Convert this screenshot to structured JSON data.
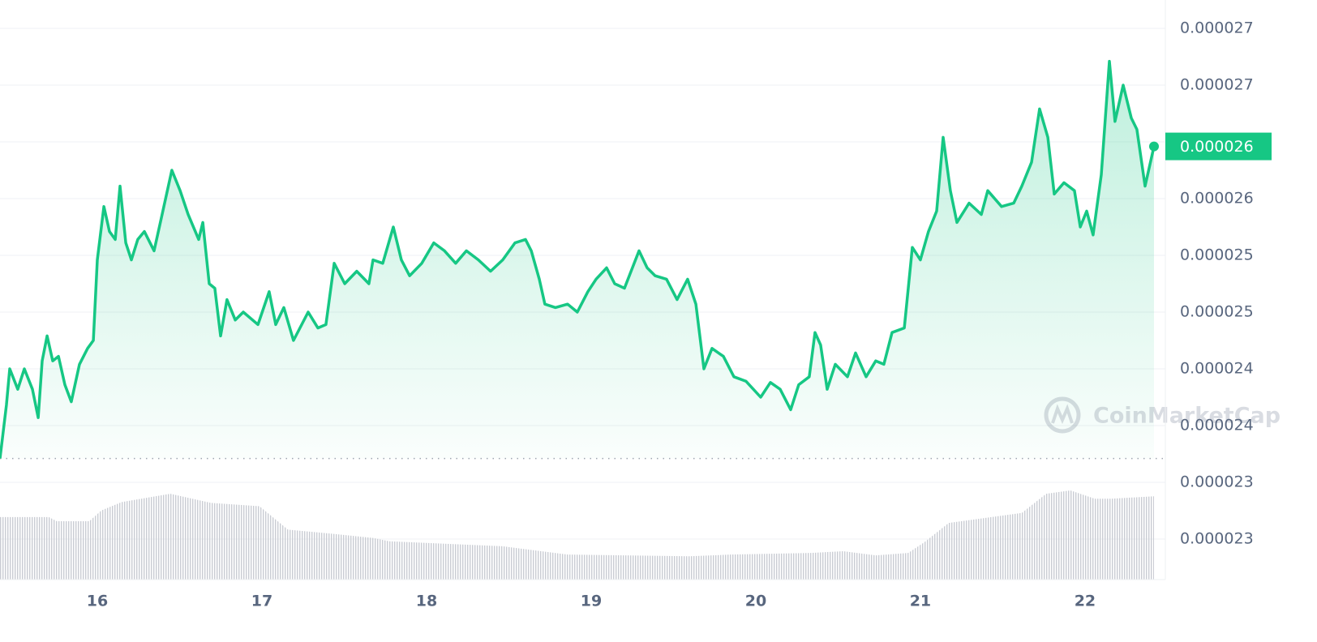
{
  "chart_data": {
    "type": "line",
    "color": "#16c784",
    "x": [
      15.409,
      15.448,
      15.468,
      15.517,
      15.557,
      15.606,
      15.641,
      15.665,
      15.695,
      15.729,
      15.764,
      15.803,
      15.842,
      15.892,
      15.941,
      15.976,
      16.0,
      16.04,
      16.074,
      16.109,
      16.138,
      16.173,
      16.207,
      16.246,
      16.286,
      16.345,
      16.394,
      16.453,
      16.503,
      16.552,
      16.616,
      16.641,
      16.68,
      16.714,
      16.749,
      16.788,
      16.838,
      16.887,
      16.976,
      17.044,
      17.084,
      17.133,
      17.192,
      17.281,
      17.34,
      17.389,
      17.439,
      17.503,
      17.576,
      17.65,
      17.675,
      17.734,
      17.798,
      17.847,
      17.897,
      17.971,
      18.044,
      18.109,
      18.177,
      18.242,
      18.315,
      18.389,
      18.463,
      18.537,
      18.601,
      18.636,
      18.685,
      18.719,
      18.783,
      18.857,
      18.916,
      18.98,
      19.03,
      19.094,
      19.143,
      19.202,
      19.291,
      19.34,
      19.389,
      19.458,
      19.522,
      19.586,
      19.636,
      19.685,
      19.734,
      19.803,
      19.867,
      19.941,
      20.03,
      20.089,
      20.148,
      20.212,
      20.261,
      20.325,
      20.36,
      20.394,
      20.434,
      20.483,
      20.557,
      20.606,
      20.67,
      20.729,
      20.778,
      20.828,
      20.902,
      20.951,
      21.0,
      21.049,
      21.099,
      21.138,
      21.182,
      21.222,
      21.296,
      21.37,
      21.409,
      21.493,
      21.567,
      21.616,
      21.675,
      21.724,
      21.774,
      21.813,
      21.872,
      21.936,
      21.971,
      22.01,
      22.049,
      22.099,
      22.148,
      22.182,
      22.232,
      22.281,
      22.315,
      22.365,
      22.419
    ],
    "values": [
      2.346e-05,
      2.393e-05,
      2.425e-05,
      2.407e-05,
      2.425e-05,
      2.407e-05,
      2.382e-05,
      2.432e-05,
      2.454e-05,
      2.432e-05,
      2.436e-05,
      2.411e-05,
      2.396e-05,
      2.429e-05,
      2.443e-05,
      2.45e-05,
      2.521e-05,
      2.568e-05,
      2.546e-05,
      2.539e-05,
      2.586e-05,
      2.536e-05,
      2.521e-05,
      2.539e-05,
      2.546e-05,
      2.529e-05,
      2.561e-05,
      2.6e-05,
      2.582e-05,
      2.561e-05,
      2.539e-05,
      2.554e-05,
      2.5e-05,
      2.496e-05,
      2.454e-05,
      2.486e-05,
      2.468e-05,
      2.475e-05,
      2.464e-05,
      2.493e-05,
      2.464e-05,
      2.479e-05,
      2.45e-05,
      2.475e-05,
      2.461e-05,
      2.464e-05,
      2.518e-05,
      2.5e-05,
      2.511e-05,
      2.5e-05,
      2.521e-05,
      2.518e-05,
      2.55e-05,
      2.521e-05,
      2.507e-05,
      2.518e-05,
      2.536e-05,
      2.529e-05,
      2.518e-05,
      2.529e-05,
      2.521e-05,
      2.511e-05,
      2.521e-05,
      2.536e-05,
      2.539e-05,
      2.529e-05,
      2.504e-05,
      2.482e-05,
      2.479e-05,
      2.482e-05,
      2.475e-05,
      2.493e-05,
      2.504e-05,
      2.514e-05,
      2.5e-05,
      2.496e-05,
      2.529e-05,
      2.514e-05,
      2.507e-05,
      2.504e-05,
      2.486e-05,
      2.504e-05,
      2.482e-05,
      2.425e-05,
      2.443e-05,
      2.436e-05,
      2.418e-05,
      2.414e-05,
      2.4e-05,
      2.413e-05,
      2.407e-05,
      2.389e-05,
      2.411e-05,
      2.418e-05,
      2.457e-05,
      2.446e-05,
      2.407e-05,
      2.429e-05,
      2.418e-05,
      2.439e-05,
      2.418e-05,
      2.432e-05,
      2.429e-05,
      2.457e-05,
      2.461e-05,
      2.532e-05,
      2.521e-05,
      2.546e-05,
      2.564e-05,
      2.629e-05,
      2.582e-05,
      2.554e-05,
      2.571e-05,
      2.561e-05,
      2.582e-05,
      2.568e-05,
      2.571e-05,
      2.586e-05,
      2.607e-05,
      2.654e-05,
      2.629e-05,
      2.579e-05,
      2.589e-05,
      2.582e-05,
      2.55e-05,
      2.564e-05,
      2.543e-05,
      2.596e-05,
      2.696e-05,
      2.643e-05,
      2.675e-05,
      2.646e-05,
      2.636e-05,
      2.586e-05,
      2.621e-05
    ],
    "xlim": [
      15.409,
      22.488
    ],
    "xticks": [
      16,
      17,
      18,
      19,
      20,
      21,
      22
    ],
    "ylim": [
      2.2393e-05,
      2.75e-05
    ],
    "yticks": [
      {
        "value": 2.725e-05,
        "label": "0.000027"
      },
      {
        "value": 2.675e-05,
        "label": "0.000027"
      },
      {
        "value": 2.625e-05,
        "label": "0.000026"
      },
      {
        "value": 2.575e-05,
        "label": "0.000026"
      },
      {
        "value": 2.525e-05,
        "label": "0.000025"
      },
      {
        "value": 2.475e-05,
        "label": "0.000025"
      },
      {
        "value": 2.425e-05,
        "label": "0.000024"
      },
      {
        "value": 2.375e-05,
        "label": "0.000024"
      },
      {
        "value": 2.325e-05,
        "label": "0.000023"
      },
      {
        "value": 2.275e-05,
        "label": "0.000023"
      }
    ],
    "grid": true,
    "baseline": 2.346e-05,
    "price_tag": {
      "value": 2.621e-05,
      "label": "0.000026"
    },
    "watermark": "CoinMarketCap",
    "volume": {
      "color": "#c9ccd3",
      "x": [
        15.409,
        15.705,
        15.754,
        15.951,
        16.025,
        16.148,
        16.443,
        16.69,
        16.985,
        17.084,
        17.158,
        17.429,
        17.675,
        17.773,
        18.463,
        18.857,
        19.596,
        19.842,
        20.335,
        20.532,
        20.729,
        20.926,
        21.025,
        21.172,
        21.32,
        21.616,
        21.764,
        21.911,
        22.059,
        22.158,
        22.419
      ],
      "values": [
        75,
        75,
        70,
        70,
        83,
        93,
        103,
        92,
        88,
        72,
        60,
        55,
        50,
        46,
        40,
        30,
        28,
        30,
        32,
        34,
        29,
        32,
        45,
        68,
        72,
        80,
        103,
        107,
        97,
        97,
        100
      ]
    }
  }
}
